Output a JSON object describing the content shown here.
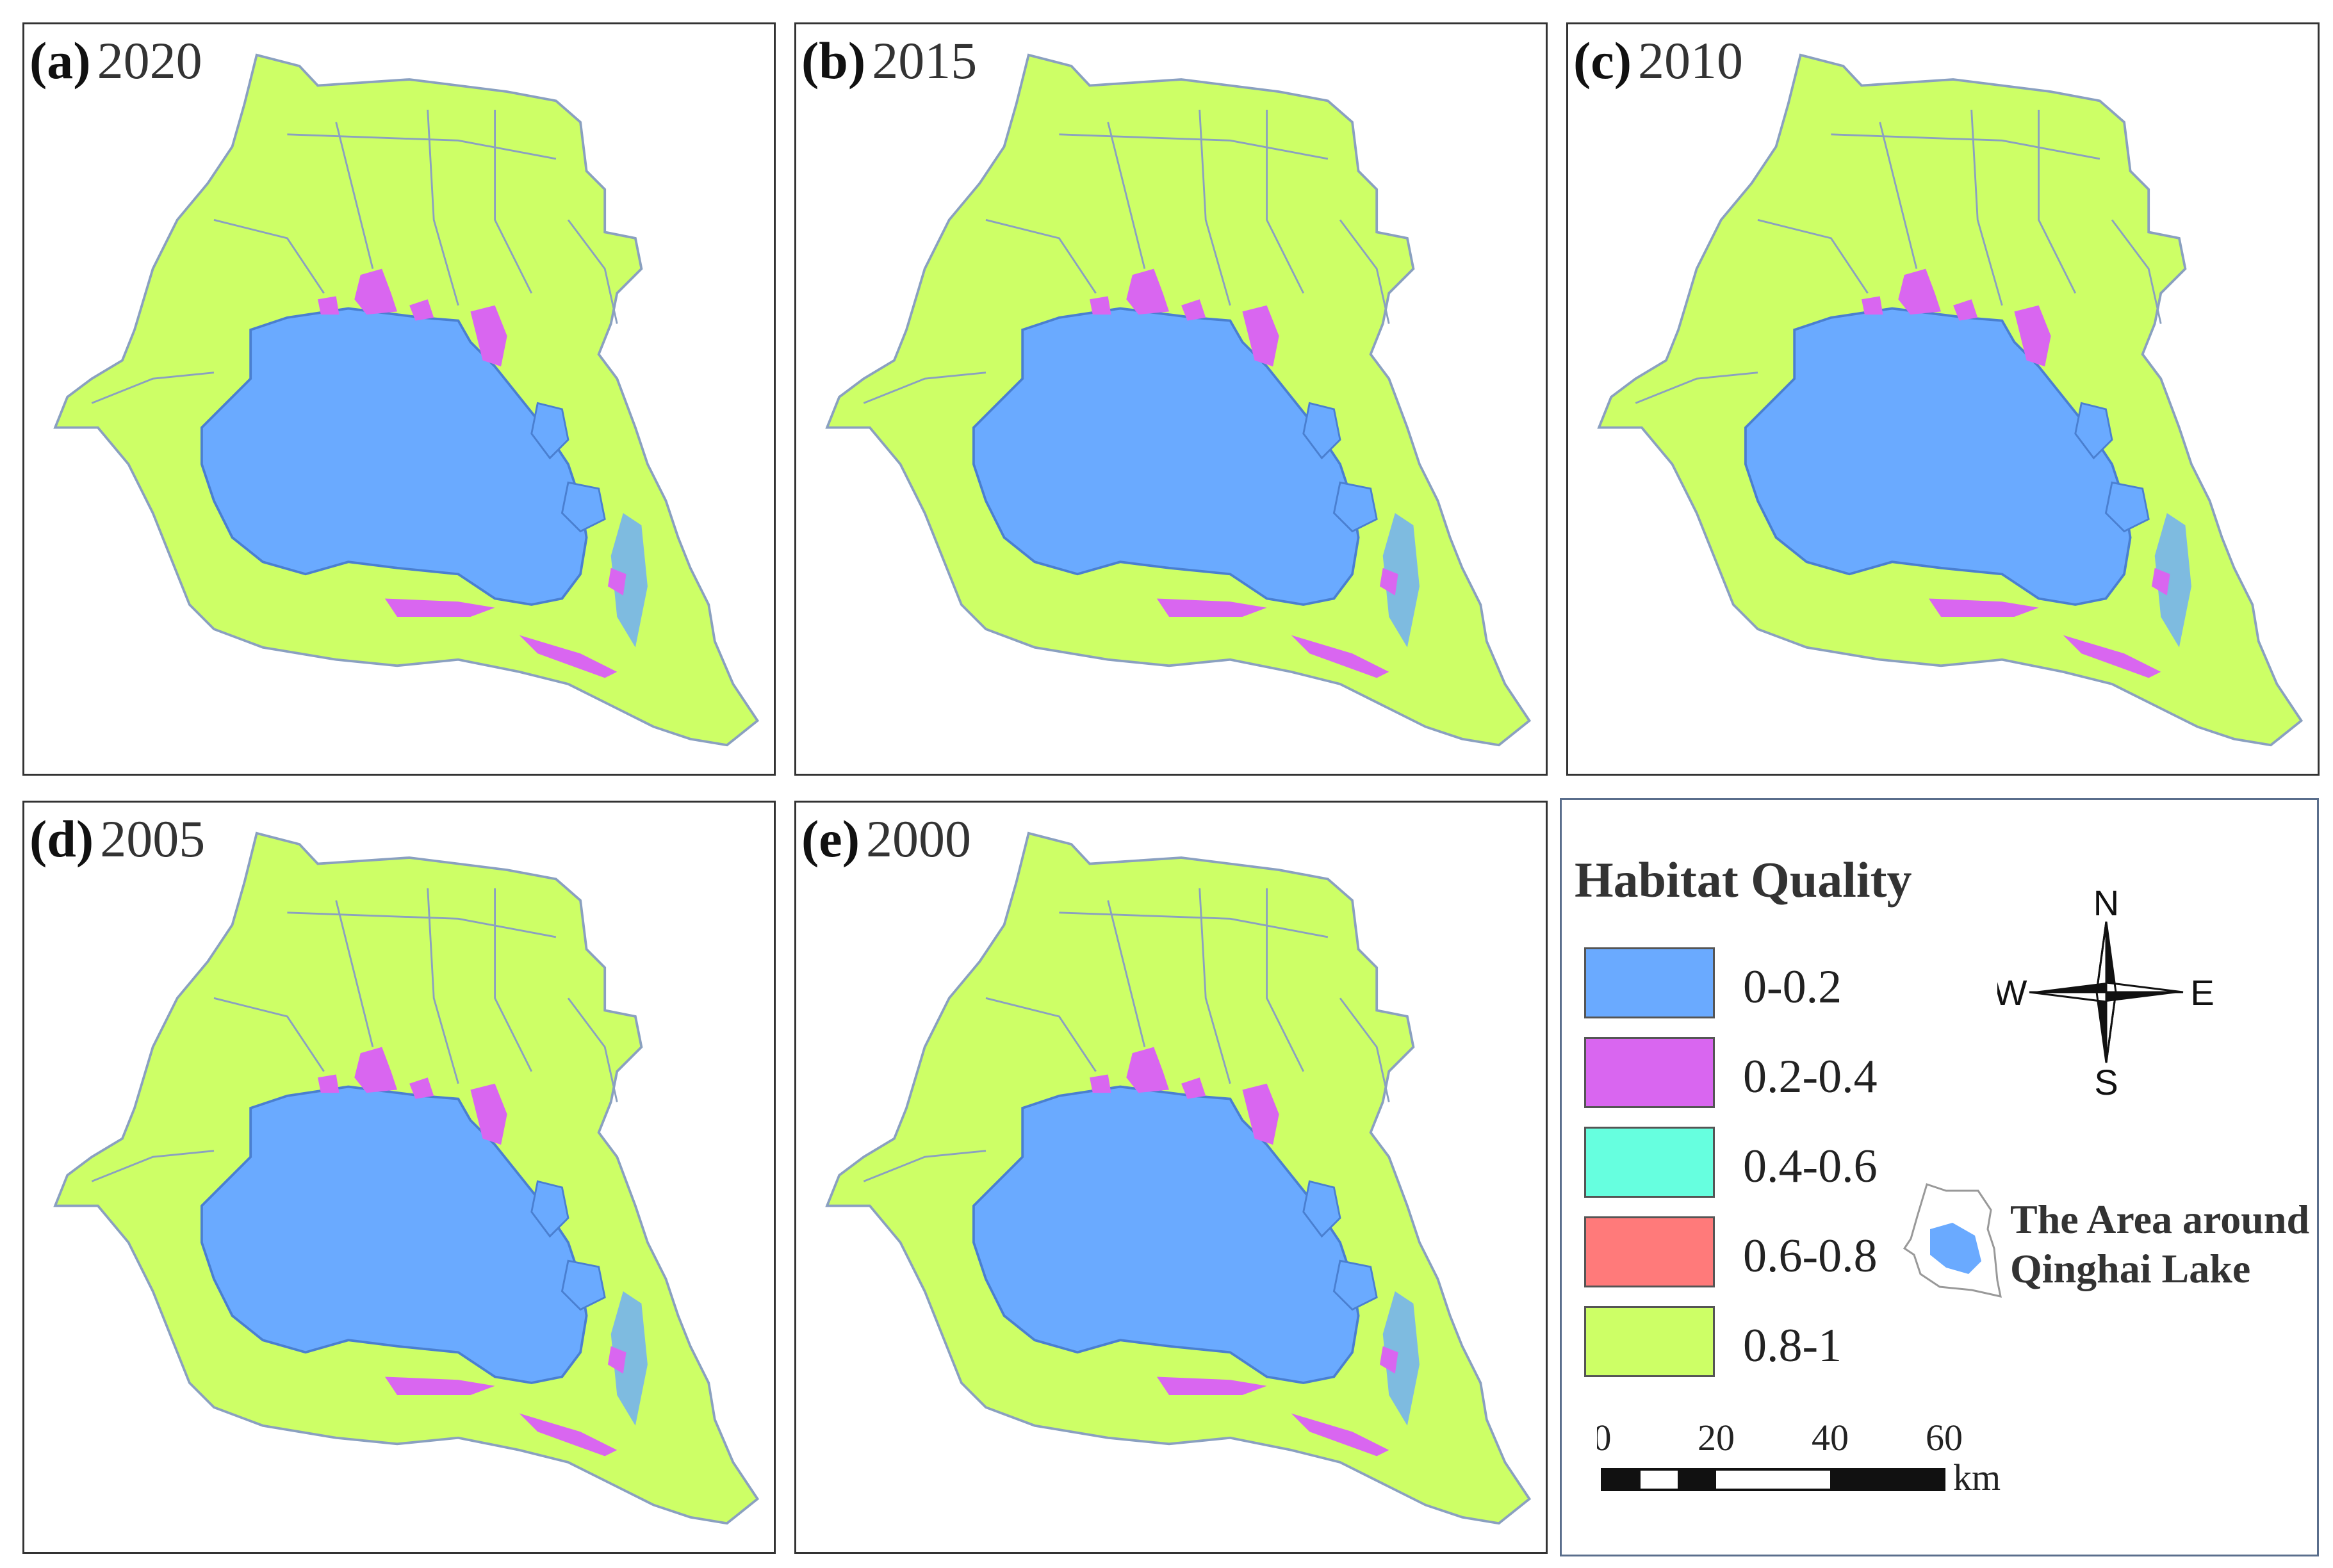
{
  "colors": {
    "lake": "#6aaaff",
    "habitat_high": "#cdff66",
    "habitat_low": "#d966f0",
    "mid": "#66ffdf",
    "upper": "#ff7a7a",
    "boundary": "#8aa0c0"
  },
  "panels": [
    {
      "letter": "(a)",
      "year": "2020"
    },
    {
      "letter": "(b)",
      "year": "2015"
    },
    {
      "letter": "(c)",
      "year": "2010"
    },
    {
      "letter": "(d)",
      "year": "2005"
    },
    {
      "letter": "(e)",
      "year": "2000"
    }
  ],
  "legend": {
    "title": "Habitat Quality",
    "items": [
      {
        "label": "0-0.2",
        "color": "#6aaaff"
      },
      {
        "label": "0.2-0.4",
        "color": "#d966f0"
      },
      {
        "label": "0.4-0.6",
        "color": "#66ffdf"
      },
      {
        "label": "0.6-0.8",
        "color": "#ff7a7a"
      },
      {
        "label": "0.8-1",
        "color": "#cdff66"
      }
    ],
    "compass": {
      "n": "N",
      "s": "S",
      "e": "E",
      "w": "W"
    },
    "inset_line1": "The Area around",
    "inset_line2": "Qinghai Lake",
    "scale": {
      "ticks": [
        "0",
        "20",
        "40",
        "60"
      ],
      "unit": "km"
    }
  }
}
